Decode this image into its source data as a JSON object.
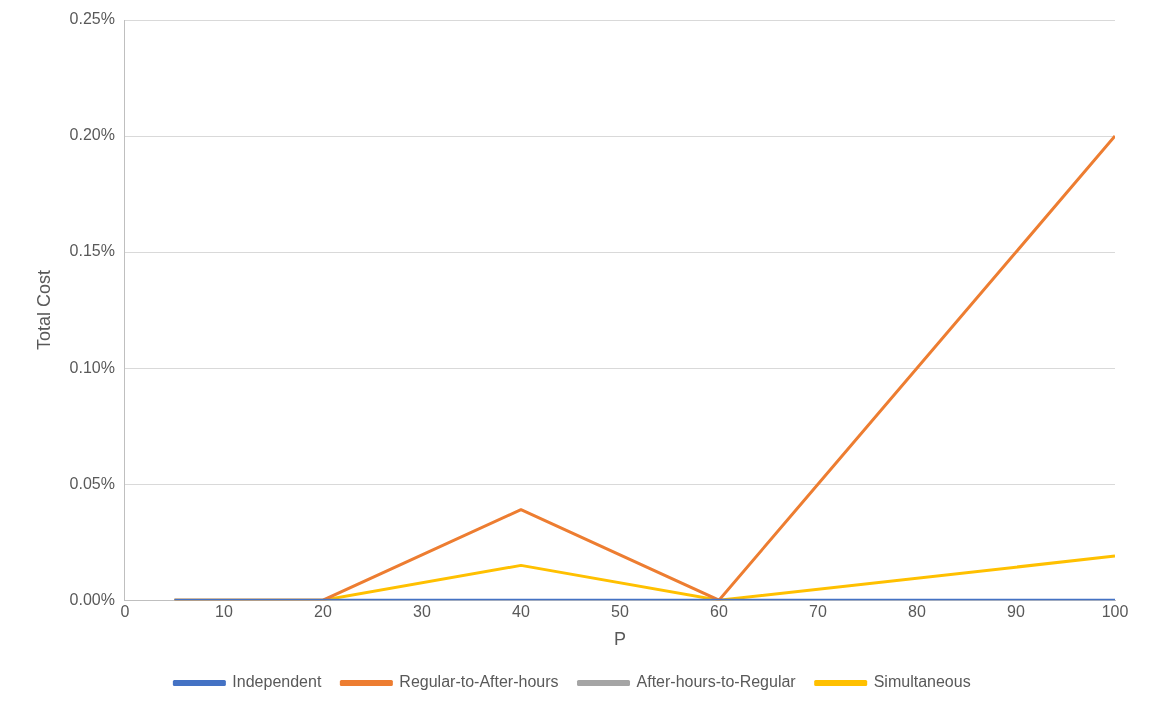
{
  "chart_data": {
    "type": "line",
    "xlabel": "P",
    "ylabel": "Total Cost",
    "x": [
      5,
      20,
      40,
      60,
      100
    ],
    "series": [
      {
        "name": "Independent",
        "color": "#4472c4",
        "values": [
          0,
          0,
          0,
          0,
          0
        ]
      },
      {
        "name": "Regular-to-After-hours",
        "color": "#ed7d31",
        "values": [
          0,
          0,
          0.039,
          0,
          0.2
        ]
      },
      {
        "name": "After-hours-to-Regular",
        "color": "#a5a5a5",
        "values": [
          null,
          null,
          null,
          null,
          null
        ]
      },
      {
        "name": "Simultaneous",
        "color": "#ffc000",
        "values": [
          0,
          0,
          0.015,
          0,
          0.019
        ]
      }
    ],
    "xlim": [
      0,
      100
    ],
    "xticks": [
      0,
      10,
      20,
      30,
      40,
      50,
      60,
      70,
      80,
      90,
      100
    ],
    "ylim": [
      0,
      0.25
    ],
    "yticks": [
      {
        "value": 0,
        "label": "0.00%"
      },
      {
        "value": 0.05,
        "label": "0.05%"
      },
      {
        "value": 0.1,
        "label": "0.10%"
      },
      {
        "value": 0.15,
        "label": "0.15%"
      },
      {
        "value": 0.2,
        "label": "0.20%"
      },
      {
        "value": 0.25,
        "label": "0.25%"
      }
    ],
    "grid": "y",
    "legend": "bottom",
    "marker": "none",
    "line_style": "solid"
  }
}
